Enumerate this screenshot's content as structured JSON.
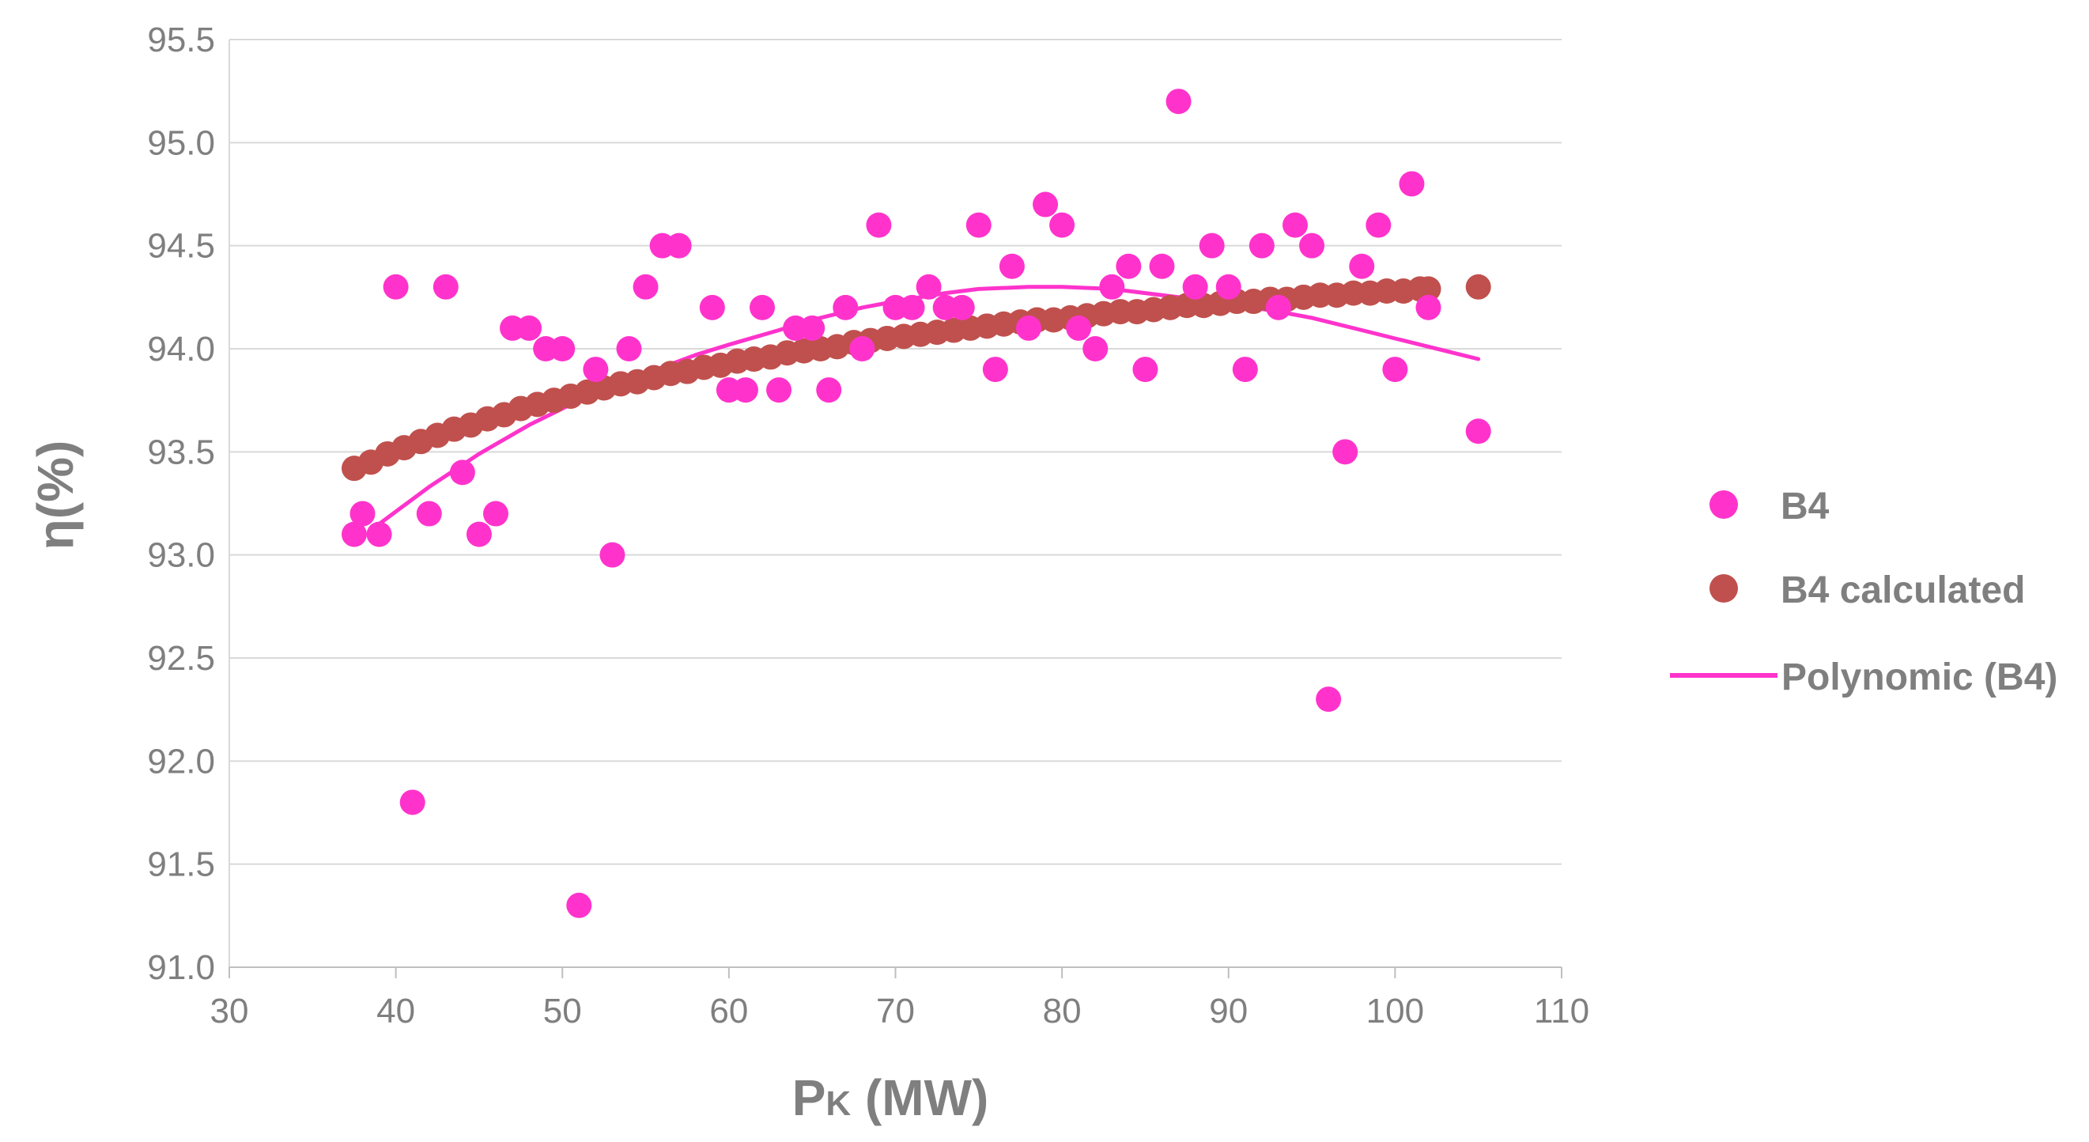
{
  "chart_data": {
    "type": "scatter",
    "title": "",
    "xlabel": "P",
    "xlabel_sub": "K",
    "xlabel_unit": " (MW)",
    "ylabel": "η(%)",
    "xlim": [
      30,
      110
    ],
    "ylim": [
      91.0,
      95.5
    ],
    "grid": true,
    "legend_position": "right",
    "x_ticks": [
      {
        "value": 30,
        "label": "30"
      },
      {
        "value": 40,
        "label": "40"
      },
      {
        "value": 50,
        "label": "50"
      },
      {
        "value": 60,
        "label": "60"
      },
      {
        "value": 70,
        "label": "70"
      },
      {
        "value": 80,
        "label": "80"
      },
      {
        "value": 90,
        "label": "90"
      },
      {
        "value": 100,
        "label": "100"
      },
      {
        "value": 110,
        "label": "110"
      }
    ],
    "y_ticks": [
      {
        "value": 91.0,
        "label": "91.0"
      },
      {
        "value": 91.5,
        "label": "91.5"
      },
      {
        "value": 92.0,
        "label": "92.0"
      },
      {
        "value": 92.5,
        "label": "92.5"
      },
      {
        "value": 93.0,
        "label": "93.0"
      },
      {
        "value": 93.5,
        "label": "93.5"
      },
      {
        "value": 94.0,
        "label": "94.0"
      },
      {
        "value": 94.5,
        "label": "94.5"
      },
      {
        "value": 95.0,
        "label": "95.0"
      },
      {
        "value": 95.5,
        "label": "95.5"
      }
    ],
    "series": [
      {
        "name": "B4",
        "kind": "scatter",
        "color": "#ff33cc",
        "points": [
          [
            37.5,
            93.1
          ],
          [
            38,
            93.2
          ],
          [
            39,
            93.1
          ],
          [
            40,
            94.3
          ],
          [
            41,
            91.8
          ],
          [
            42,
            93.2
          ],
          [
            43,
            94.3
          ],
          [
            44,
            93.4
          ],
          [
            45,
            93.1
          ],
          [
            46,
            93.2
          ],
          [
            47,
            94.1
          ],
          [
            48,
            94.1
          ],
          [
            49,
            94.0
          ],
          [
            50,
            94.0
          ],
          [
            51,
            91.3
          ],
          [
            52,
            93.9
          ],
          [
            53,
            93.0
          ],
          [
            54,
            94.0
          ],
          [
            55,
            94.3
          ],
          [
            56,
            94.5
          ],
          [
            57,
            94.5
          ],
          [
            59,
            94.2
          ],
          [
            60,
            93.8
          ],
          [
            61,
            93.8
          ],
          [
            62,
            94.2
          ],
          [
            63,
            93.8
          ],
          [
            64,
            94.1
          ],
          [
            65,
            94.1
          ],
          [
            66,
            93.8
          ],
          [
            67,
            94.2
          ],
          [
            68,
            94.0
          ],
          [
            69,
            94.6
          ],
          [
            70,
            94.2
          ],
          [
            71,
            94.2
          ],
          [
            72,
            94.3
          ],
          [
            73,
            94.2
          ],
          [
            74,
            94.2
          ],
          [
            75,
            94.6
          ],
          [
            76,
            93.9
          ],
          [
            77,
            94.4
          ],
          [
            78,
            94.1
          ],
          [
            79,
            94.7
          ],
          [
            80,
            94.6
          ],
          [
            81,
            94.1
          ],
          [
            82,
            94.0
          ],
          [
            83,
            94.3
          ],
          [
            84,
            94.4
          ],
          [
            85,
            93.9
          ],
          [
            86,
            94.4
          ],
          [
            87,
            95.2
          ],
          [
            88,
            94.3
          ],
          [
            89,
            94.5
          ],
          [
            90,
            94.3
          ],
          [
            91,
            93.9
          ],
          [
            92,
            94.5
          ],
          [
            93,
            94.2
          ],
          [
            94,
            94.6
          ],
          [
            95,
            94.5
          ],
          [
            96,
            92.3
          ],
          [
            97,
            93.5
          ],
          [
            98,
            94.4
          ],
          [
            99,
            94.6
          ],
          [
            100,
            93.9
          ],
          [
            101,
            94.8
          ],
          [
            102,
            94.2
          ],
          [
            105,
            93.6
          ]
        ]
      },
      {
        "name": "B4 calculated",
        "kind": "scatter",
        "color": "#c0504d",
        "points": [
          [
            37.5,
            93.42
          ],
          [
            38.5,
            93.45
          ],
          [
            39.5,
            93.49
          ],
          [
            40.5,
            93.52
          ],
          [
            41.5,
            93.55
          ],
          [
            42.5,
            93.58
          ],
          [
            43.5,
            93.61
          ],
          [
            44.5,
            93.63
          ],
          [
            45.5,
            93.66
          ],
          [
            46.5,
            93.68
          ],
          [
            47.5,
            93.71
          ],
          [
            48.5,
            93.73
          ],
          [
            49.5,
            93.75
          ],
          [
            50.5,
            93.77
          ],
          [
            51.5,
            93.79
          ],
          [
            52.5,
            93.81
          ],
          [
            53.5,
            93.83
          ],
          [
            54.5,
            93.84
          ],
          [
            55.5,
            93.86
          ],
          [
            56.5,
            93.88
          ],
          [
            57.5,
            93.89
          ],
          [
            58.5,
            93.91
          ],
          [
            59.5,
            93.92
          ],
          [
            60.5,
            93.94
          ],
          [
            61.5,
            93.95
          ],
          [
            62.5,
            93.96
          ],
          [
            63.5,
            93.98
          ],
          [
            64.5,
            93.99
          ],
          [
            65.5,
            94.0
          ],
          [
            66.5,
            94.01
          ],
          [
            67.5,
            94.03
          ],
          [
            68.5,
            94.04
          ],
          [
            69.5,
            94.05
          ],
          [
            70.5,
            94.06
          ],
          [
            71.5,
            94.07
          ],
          [
            72.5,
            94.08
          ],
          [
            73.5,
            94.09
          ],
          [
            74.5,
            94.1
          ],
          [
            75.5,
            94.11
          ],
          [
            76.5,
            94.12
          ],
          [
            77.5,
            94.13
          ],
          [
            78.5,
            94.14
          ],
          [
            79.5,
            94.14
          ],
          [
            80.5,
            94.15
          ],
          [
            81.5,
            94.16
          ],
          [
            82.5,
            94.17
          ],
          [
            83.5,
            94.18
          ],
          [
            84.5,
            94.18
          ],
          [
            85.5,
            94.19
          ],
          [
            86.5,
            94.2
          ],
          [
            87.5,
            94.21
          ],
          [
            88.5,
            94.21
          ],
          [
            89.5,
            94.22
          ],
          [
            90.5,
            94.23
          ],
          [
            91.5,
            94.23
          ],
          [
            92.5,
            94.24
          ],
          [
            93.5,
            94.24
          ],
          [
            94.5,
            94.25
          ],
          [
            95.5,
            94.26
          ],
          [
            96.5,
            94.26
          ],
          [
            97.5,
            94.27
          ],
          [
            98.5,
            94.27
          ],
          [
            99.5,
            94.28
          ],
          [
            100.5,
            94.28
          ],
          [
            101.5,
            94.29
          ],
          [
            102,
            94.29
          ],
          [
            105,
            94.3
          ]
        ]
      },
      {
        "name": "Polynomic (B4)",
        "kind": "line",
        "color": "#ff33cc",
        "points": [
          [
            38.5,
            93.12
          ],
          [
            40,
            93.21
          ],
          [
            42,
            93.33
          ],
          [
            45,
            93.49
          ],
          [
            48,
            93.63
          ],
          [
            50,
            93.71
          ],
          [
            52,
            93.79
          ],
          [
            55,
            93.88
          ],
          [
            58,
            93.97
          ],
          [
            60,
            94.02
          ],
          [
            63,
            94.09
          ],
          [
            65,
            94.14
          ],
          [
            68,
            94.2
          ],
          [
            70,
            94.23
          ],
          [
            73,
            94.27
          ],
          [
            75,
            94.29
          ],
          [
            78,
            94.3
          ],
          [
            80,
            94.3
          ],
          [
            83,
            94.29
          ],
          [
            85,
            94.27
          ],
          [
            88,
            94.24
          ],
          [
            90,
            94.22
          ],
          [
            93,
            94.18
          ],
          [
            95,
            94.15
          ],
          [
            98,
            94.09
          ],
          [
            100,
            94.05
          ],
          [
            103,
            93.99
          ],
          [
            105,
            93.95
          ]
        ]
      }
    ],
    "legend": [
      {
        "label": "B4",
        "marker": "dot",
        "color": "#ff33cc"
      },
      {
        "label": "B4 calculated",
        "marker": "dot",
        "color": "#c0504d"
      },
      {
        "label": "Polynomic (B4)",
        "marker": "line",
        "color": "#ff33cc"
      }
    ]
  }
}
